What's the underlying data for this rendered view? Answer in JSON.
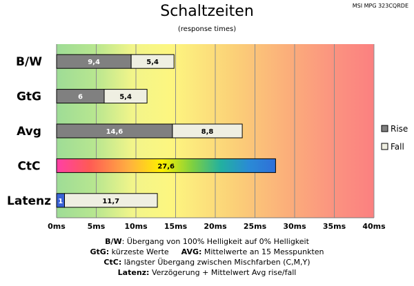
{
  "chart_data": {
    "type": "bar",
    "orientation": "horizontal",
    "stacked": true,
    "title": "Schaltzeiten",
    "subtitle": "(response times)",
    "monitor": "MSI MPG 323CQRDE",
    "categories": [
      "B/W",
      "GtG",
      "Avg",
      "CtC",
      "Latenz"
    ],
    "series": [
      {
        "name": "Rise",
        "color": "#808080",
        "values": [
          9.4,
          6,
          14.6,
          27.6,
          1
        ],
        "labels": [
          "9,4",
          "6",
          "14,6",
          "27,6",
          "1"
        ]
      },
      {
        "name": "Fall",
        "color": "#efefe2",
        "values": [
          5.4,
          5.4,
          8.8,
          null,
          11.7
        ],
        "labels": [
          "5,4",
          "5,4",
          "8,8",
          "",
          "11,7"
        ]
      }
    ],
    "special_colors": {
      "CtC": "gradient-pink-yellow-green-blue",
      "Latenz_rise": "#3a63d6"
    },
    "xlim": [
      0,
      40
    ],
    "xticks": [
      0,
      5,
      10,
      15,
      20,
      25,
      30,
      35,
      40
    ],
    "xtick_labels": [
      "0ms",
      "5ms",
      "10ms",
      "15ms",
      "20ms",
      "25ms",
      "30ms",
      "35ms",
      "40ms"
    ],
    "background": "gradient green-yellow-orange-red",
    "grid": true,
    "legend_position": "right"
  },
  "footnotes": {
    "bw_key": "B/W",
    "bw_text": ":  Übergang von 100% Helligkeit auf 0% Helligkeit",
    "gtg_key": "GtG:",
    "gtg_text": " kürzeste  Werte",
    "avg_key": "AVG:",
    "avg_text": " Mittelwerte  an 15 Messpunkten",
    "ctc_key": "CtC:",
    "ctc_text": " längster Übergang  zwischen Mischfarben  (C,M,Y)",
    "lat_key": "Latenz:",
    "lat_text": " Verzögerung  + Mittelwert  Avg rise/fall"
  }
}
